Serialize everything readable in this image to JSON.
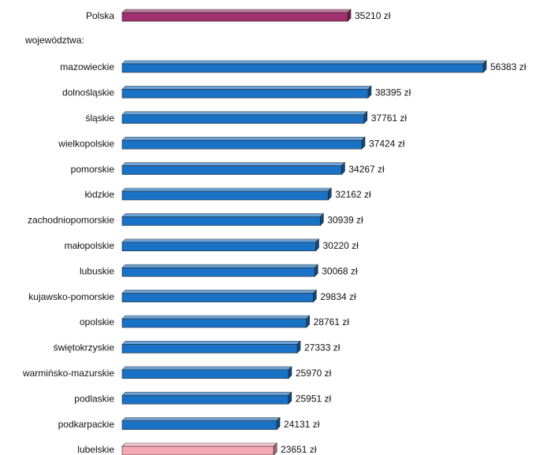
{
  "chart_data": {
    "type": "bar3d",
    "group_label": "województwa:",
    "categories": [
      "Polska",
      "mazowieckie",
      "dolnośląskie",
      "śląskie",
      "wielkopolskie",
      "pomorskie",
      "łódzkie",
      "zachodniopomorskie",
      "małopolskie",
      "lubuskie",
      "kujawsko-pomorskie",
      "opolskie",
      "świętokrzyskie",
      "warmińsko-mazurskie",
      "podlaskie",
      "podkarpackie",
      "lubelskie"
    ],
    "values": [
      35210,
      56383,
      38395,
      37761,
      37424,
      34267,
      32162,
      30939,
      30220,
      30068,
      29834,
      28761,
      27333,
      25970,
      25951,
      24131,
      23651
    ],
    "value_labels": [
      "35210 zł",
      "56383 zł",
      "38395 zł",
      "37761 zł",
      "37424 zł",
      "34267 zł",
      "32162 zł",
      "30939 zł",
      "30220 zł",
      "30068 zł",
      "29834 zł",
      "28761 zł",
      "27333 zł",
      "25970 zł",
      "25951 zł",
      "24131 zł",
      "23651 zł"
    ],
    "colors": [
      "#a0306e",
      "#1a72c6",
      "#1a72c6",
      "#1a72c6",
      "#1a72c6",
      "#1a72c6",
      "#1a72c6",
      "#1a72c6",
      "#1a72c6",
      "#1a72c6",
      "#1a72c6",
      "#1a72c6",
      "#1a72c6",
      "#1a72c6",
      "#1a72c6",
      "#1a72c6",
      "#f5a9b4"
    ]
  }
}
